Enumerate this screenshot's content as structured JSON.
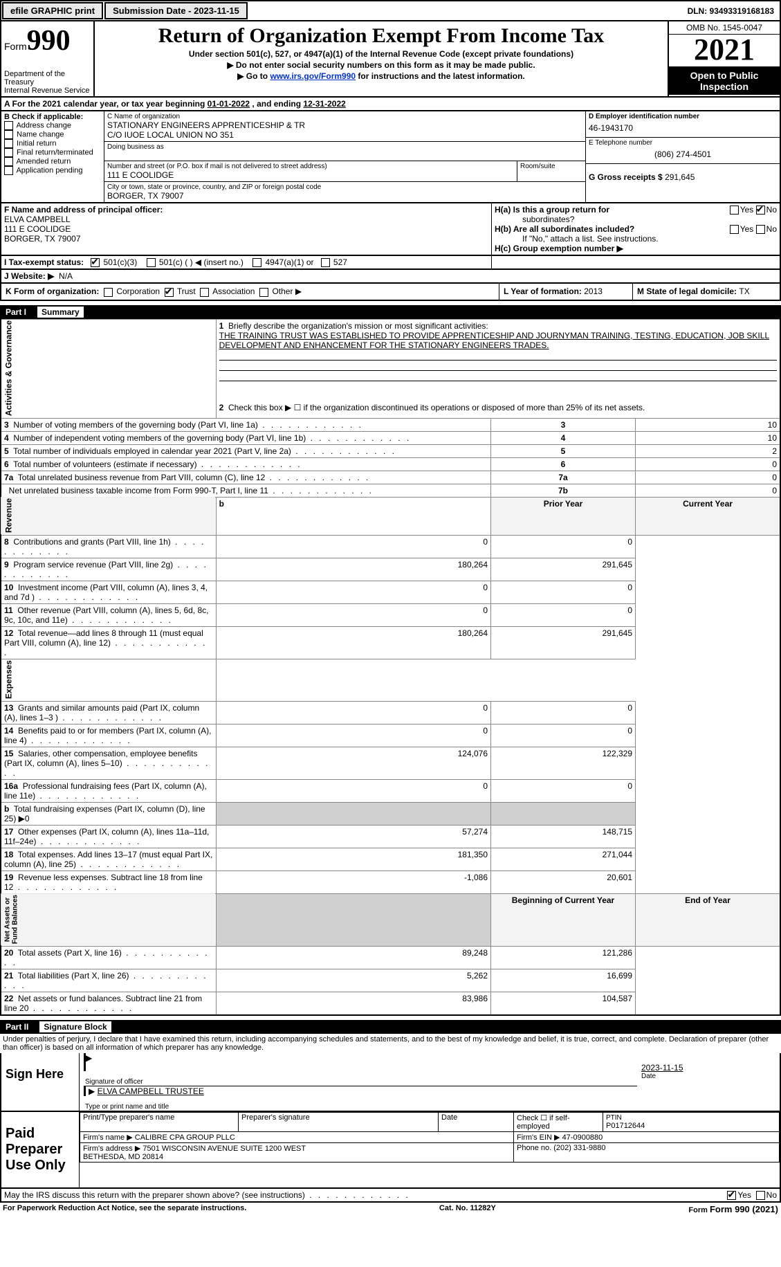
{
  "topbar": {
    "efile": "efile GRAPHIC print",
    "submission_label": "Submission Date - 2023-11-15",
    "dln_label": "DLN: 93493319168183"
  },
  "header": {
    "form_word": "Form",
    "form_num": "990",
    "title": "Return of Organization Exempt From Income Tax",
    "subtitle": "Under section 501(c), 527, or 4947(a)(1) of the Internal Revenue Code (except private foundations)",
    "note1": "Do not enter social security numbers on this form as it may be made public.",
    "note2_pre": "Go to ",
    "note2_link": "www.irs.gov/Form990",
    "note2_post": " for instructions and the latest information.",
    "dept": "Department of the Treasury\nInternal Revenue Service",
    "omb": "OMB No. 1545-0047",
    "year": "2021",
    "inspection": "Open to Public Inspection"
  },
  "row_a": {
    "label": "A For the 2021 calendar year, or tax year beginning ",
    "begin": "01-01-2022",
    "mid": " , and ending ",
    "end": "12-31-2022"
  },
  "block_b": {
    "label": "B Check if applicable:",
    "opts": [
      "Address change",
      "Name change",
      "Initial return",
      "Final return/terminated",
      "Amended return",
      "Application pending"
    ]
  },
  "block_c": {
    "name_label": "C Name of organization",
    "name1": "STATIONARY ENGINEERS APPRENTICESHIP & TR",
    "name2": "C/O IUOE LOCAL UNION NO 351",
    "dba_label": "Doing business as",
    "street_label": "Number and street (or P.O. box if mail is not delivered to street address)",
    "room_label": "Room/suite",
    "street": "111 E COOLIDGE",
    "city_label": "City or town, state or province, country, and ZIP or foreign postal code",
    "city": "BORGER, TX  79007"
  },
  "block_d": {
    "ein_label": "D Employer identification number",
    "ein": "46-1943170",
    "phone_label": "E Telephone number",
    "phone": "(806) 274-4501",
    "gross_label": "G Gross receipts $",
    "gross": "291,645"
  },
  "block_f": {
    "label": "F Name and address of principal officer:",
    "name": "ELVA CAMPBELL",
    "street": "111 E COOLIDGE",
    "city": "BORGER, TX  79007"
  },
  "block_h": {
    "ha1": "H(a)  Is this a group return for",
    "ha2": "subordinates?",
    "hb": "H(b)  Are all subordinates included?",
    "hbnote": "If \"No,\" attach a list. See instructions.",
    "hc": "H(c)  Group exemption number ▶"
  },
  "row_i": {
    "label": "I  Tax-exempt status:",
    "a": "501(c)(3)",
    "b": "501(c) (   ) ◀ (insert no.)",
    "c": "4947(a)(1) or",
    "d": "527"
  },
  "row_j": {
    "label": "J  Website: ▶",
    "val": "N/A"
  },
  "row_k": {
    "label": "K Form of organization:",
    "a": "Corporation",
    "b": "Trust",
    "c": "Association",
    "d": "Other ▶"
  },
  "row_l": {
    "label": "L Year of formation: ",
    "val": "2013"
  },
  "row_m": {
    "label": "M State of legal domicile: ",
    "val": "TX"
  },
  "partI": {
    "num": "Part I",
    "title": "Summary"
  },
  "summary": {
    "q1a": "Briefly describe the organization's mission or most significant activities:",
    "q1b": "THE TRAINING TRUST WAS ESTABLISHED TO PROVIDE APPRENTICESHIP AND JOURNYMAN TRAINING, TESTING, EDUCATION, JOB SKILL DEVELOPMENT AND ENHANCEMENT FOR THE STATIONARY ENGINEERS TRADES.",
    "q2": "Check this box ▶ ☐ if the organization discontinued its operations or disposed of more than 25% of its net assets.",
    "rows": [
      {
        "n": "3",
        "t": "Number of voting members of the governing body (Part VI, line 1a)",
        "box": "3",
        "v": "10"
      },
      {
        "n": "4",
        "t": "Number of independent voting members of the governing body (Part VI, line 1b)",
        "box": "4",
        "v": "10"
      },
      {
        "n": "5",
        "t": "Total number of individuals employed in calendar year 2021 (Part V, line 2a)",
        "box": "5",
        "v": "2"
      },
      {
        "n": "6",
        "t": "Total number of volunteers (estimate if necessary)",
        "box": "6",
        "v": "0"
      },
      {
        "n": "7a",
        "t": "Total unrelated business revenue from Part VIII, column (C), line 12",
        "box": "7a",
        "v": "0"
      },
      {
        "n": "",
        "t": "Net unrelated business taxable income from Form 990-T, Part I, line 11",
        "box": "7b",
        "v": "0"
      }
    ],
    "col_prior": "Prior Year",
    "col_curr": "Current Year",
    "revenue": [
      {
        "n": "8",
        "t": "Contributions and grants (Part VIII, line 1h)",
        "p": "0",
        "c": "0"
      },
      {
        "n": "9",
        "t": "Program service revenue (Part VIII, line 2g)",
        "p": "180,264",
        "c": "291,645"
      },
      {
        "n": "10",
        "t": "Investment income (Part VIII, column (A), lines 3, 4, and 7d )",
        "p": "0",
        "c": "0"
      },
      {
        "n": "11",
        "t": "Other revenue (Part VIII, column (A), lines 5, 6d, 8c, 9c, 10c, and 11e)",
        "p": "0",
        "c": "0"
      },
      {
        "n": "12",
        "t": "Total revenue—add lines 8 through 11 (must equal Part VIII, column (A), line 12)",
        "p": "180,264",
        "c": "291,645"
      }
    ],
    "expenses": [
      {
        "n": "13",
        "t": "Grants and similar amounts paid (Part IX, column (A), lines 1–3 )",
        "p": "0",
        "c": "0"
      },
      {
        "n": "14",
        "t": "Benefits paid to or for members (Part IX, column (A), line 4)",
        "p": "0",
        "c": "0"
      },
      {
        "n": "15",
        "t": "Salaries, other compensation, employee benefits (Part IX, column (A), lines 5–10)",
        "p": "124,076",
        "c": "122,329"
      },
      {
        "n": "16a",
        "t": "Professional fundraising fees (Part IX, column (A), line 11e)",
        "p": "0",
        "c": "0"
      },
      {
        "n": "b",
        "t": "Total fundraising expenses (Part IX, column (D), line 25) ▶0",
        "p": "shade",
        "c": "shade"
      },
      {
        "n": "17",
        "t": "Other expenses (Part IX, column (A), lines 11a–11d, 11f–24e)",
        "p": "57,274",
        "c": "148,715"
      },
      {
        "n": "18",
        "t": "Total expenses. Add lines 13–17 (must equal Part IX, column (A), line 25)",
        "p": "181,350",
        "c": "271,044"
      },
      {
        "n": "19",
        "t": "Revenue less expenses. Subtract line 18 from line 12",
        "p": "-1,086",
        "c": "20,601"
      }
    ],
    "col_begin": "Beginning of Current Year",
    "col_end": "End of Year",
    "net": [
      {
        "n": "20",
        "t": "Total assets (Part X, line 16)",
        "p": "89,248",
        "c": "121,286"
      },
      {
        "n": "21",
        "t": "Total liabilities (Part X, line 26)",
        "p": "5,262",
        "c": "16,699"
      },
      {
        "n": "22",
        "t": "Net assets or fund balances. Subtract line 21 from line 20",
        "p": "83,986",
        "c": "104,587"
      }
    ],
    "sidelabels": {
      "gov": "Activities & Governance",
      "rev": "Revenue",
      "exp": "Expenses",
      "net": "Net Assets or\nFund Balances"
    }
  },
  "partII": {
    "num": "Part II",
    "title": "Signature Block"
  },
  "perjury": "Under penalties of perjury, I declare that I have examined this return, including accompanying schedules and statements, and to the best of my knowledge and belief, it is true, correct, and complete. Declaration of preparer (other than officer) is based on all information of which preparer has any knowledge.",
  "sign": {
    "here": "Sign Here",
    "sig_label": "Signature of officer",
    "date": "2023-11-15",
    "date_label": "Date",
    "name": "ELVA CAMPBELL TRUSTEE",
    "name_label": "Type or print name and title"
  },
  "paid": {
    "label": "Paid Preparer Use Only",
    "h_name": "Print/Type preparer's name",
    "h_sig": "Preparer's signature",
    "h_date": "Date",
    "h_self": "Check ☐ if self-employed",
    "h_ptin": "PTIN",
    "ptin": "P01712644",
    "firm_name_l": "Firm's name    ▶",
    "firm_name": "CALIBRE CPA GROUP PLLC",
    "firm_ein_l": "Firm's EIN ▶",
    "firm_ein": "47-0900880",
    "firm_addr_l": "Firm's address ▶",
    "firm_addr": "7501 WISCONSIN AVENUE SUITE 1200 WEST\nBETHESDA, MD  20814",
    "phone_l": "Phone no.",
    "phone": "(202) 331-9880"
  },
  "discuss": "May the IRS discuss this return with the preparer shown above? (see instructions)",
  "footer": {
    "pra": "For Paperwork Reduction Act Notice, see the separate instructions.",
    "cat": "Cat. No. 11282Y",
    "form": "Form 990 (2021)"
  }
}
